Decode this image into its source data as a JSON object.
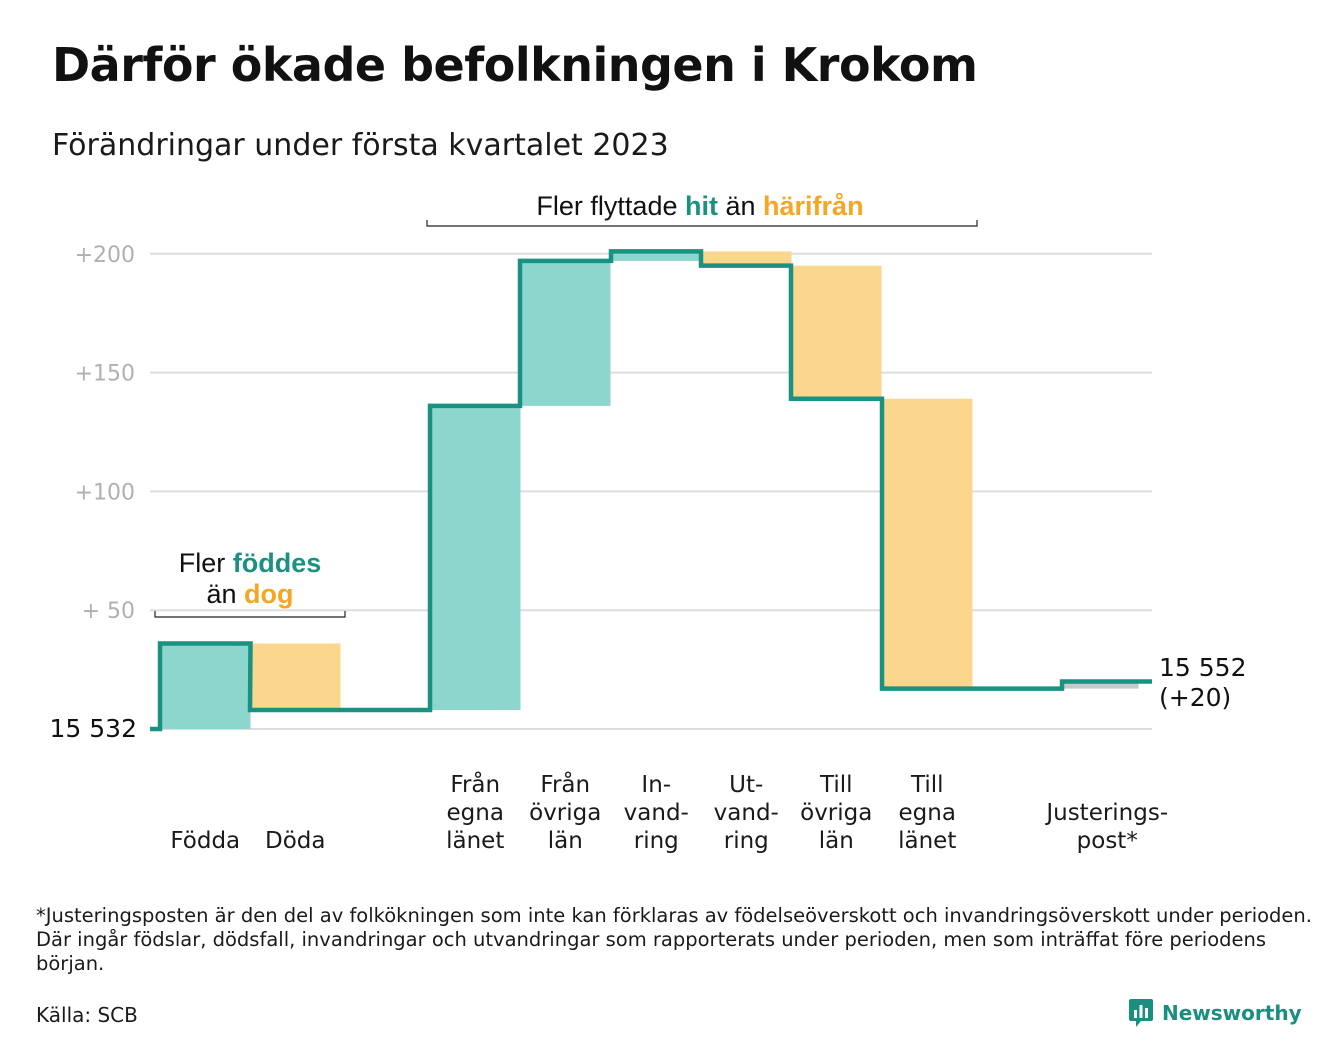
{
  "title": "Därför ökade befolkningen i Krokom",
  "subtitle": "Förändringar under första kvartalet 2023",
  "footnote": "*Justeringsposten är den del av folkökningen som inte kan förklaras av födelseöverskott och invandringsöverskott under perioden. Där ingår födslar, dödsfall, invandringar och utvandringar som rapporterats under perioden, men som inträffat före periodens början.",
  "source": "Källa: SCB",
  "brand": {
    "name": "Newsworthy",
    "icon": "bar-chart-bubble-icon"
  },
  "colors": {
    "increase": "#8dd6cd",
    "decrease": "#fbd68d",
    "line": "#1a9181",
    "adjustment": "#c8c8c8",
    "grid": "#dddddd",
    "tick": "#b0b0b0"
  },
  "annotations": {
    "births": {
      "line1_prefix": "Fler ",
      "line1_highlight": "föddes",
      "line2_prefix": "än ",
      "line2_highlight": "dog"
    },
    "migration": {
      "prefix": "Fler flyttade ",
      "highlight_in": "hit",
      "middle": " än ",
      "highlight_out": "härifrån"
    }
  },
  "chart_data": {
    "type": "waterfall",
    "title": "Därför ökade befolkningen i Krokom",
    "subtitle": "Förändringar under första kvartalet 2023",
    "start_value": 15532,
    "start_label": "15 532",
    "end_value": 15552,
    "end_label": "15 552",
    "end_change_label": "(+20)",
    "ylim": [
      -10,
      200
    ],
    "yticks": [
      {
        "value": 50,
        "label": "+ 50"
      },
      {
        "value": 100,
        "label": "+100"
      },
      {
        "value": 150,
        "label": "+150"
      },
      {
        "value": 200,
        "label": "+200"
      }
    ],
    "grid": true,
    "steps": [
      {
        "label": [
          "Födda"
        ],
        "change": 36
      },
      {
        "label": [
          "Döda"
        ],
        "change": -28
      },
      {
        "label": [
          "Från",
          "egna",
          "länet"
        ],
        "change": 128
      },
      {
        "label": [
          "Från",
          "övriga",
          "län"
        ],
        "change": 61
      },
      {
        "label": [
          "In-",
          "vand-",
          "ring"
        ],
        "change": 4
      },
      {
        "label": [
          "Ut-",
          "vand-",
          "ring"
        ],
        "change": -6
      },
      {
        "label": [
          "Till",
          "övriga",
          "län"
        ],
        "change": -56
      },
      {
        "label": [
          "Till",
          "egna",
          "länet"
        ],
        "change": -122
      },
      {
        "label": [
          "Justerings-",
          "post*"
        ],
        "change": 3
      }
    ]
  }
}
